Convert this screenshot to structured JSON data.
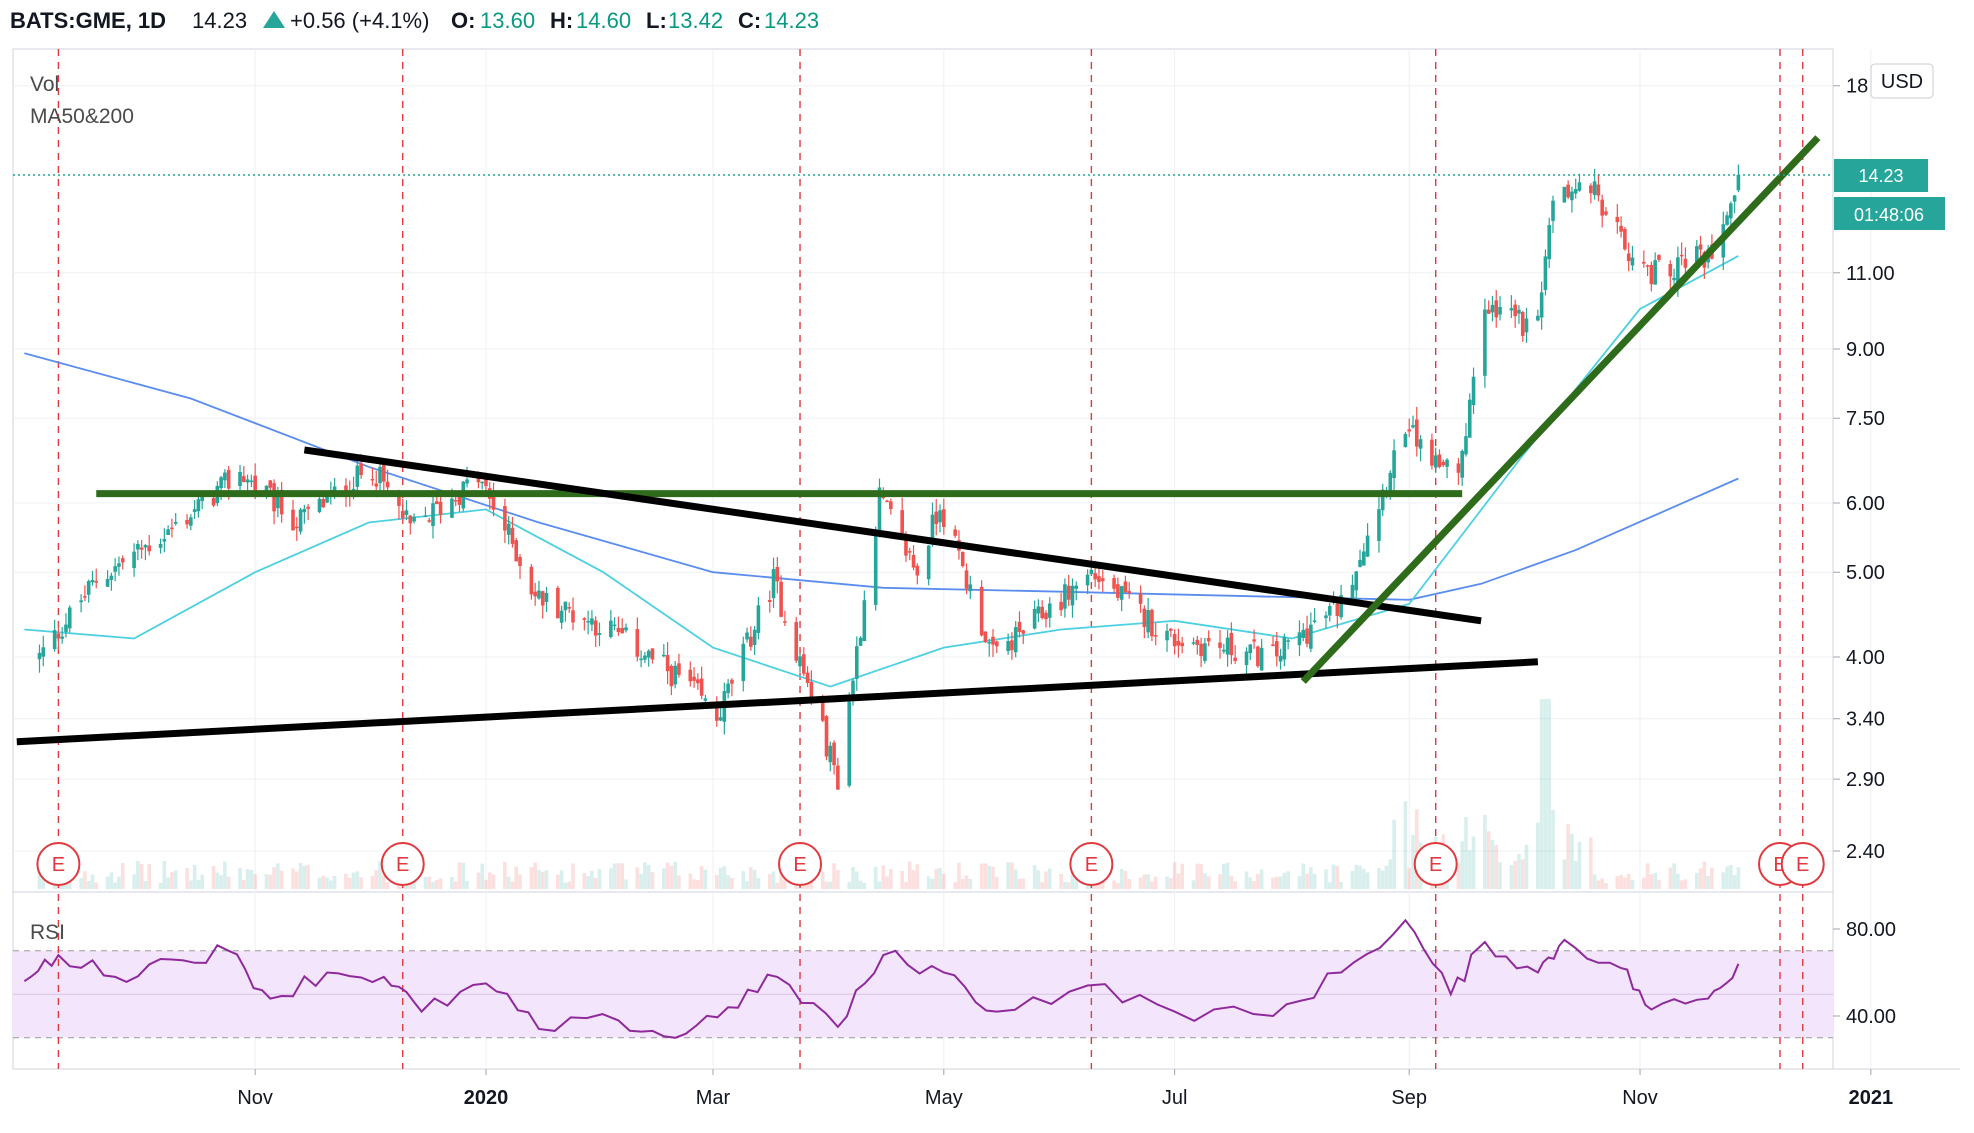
{
  "header": {
    "symbol": "BATS:GME, 1D",
    "last": "14.23",
    "change": "+0.56 (+4.1%)",
    "o_label": "O:",
    "o_value": "13.60",
    "h_label": "H:",
    "h_value": "14.60",
    "l_label": "L:",
    "l_value": "13.42",
    "c_label": "C:",
    "c_value": "14.23"
  },
  "indicators": {
    "vol": "Vol",
    "ma": "MA50&200",
    "rsi": "RSI"
  },
  "price_axis": {
    "currency": "USD",
    "ticks": [
      "18",
      "11.00",
      "9.00",
      "7.50",
      "6.00",
      "5.00",
      "4.00",
      "3.40",
      "2.90",
      "2.40"
    ],
    "last_price": "14.23",
    "countdown": "01:48:06"
  },
  "rsi_axis": {
    "ticks": [
      "80.00",
      "40.00"
    ]
  },
  "time_axis": {
    "labels": [
      "Nov",
      "2020",
      "Mar",
      "May",
      "Jul",
      "Sep",
      "Nov",
      "2021"
    ]
  },
  "earnings_marker": "E",
  "colors": {
    "up": "#26a69a",
    "down": "#ef5350",
    "ma50": "#4dd0e1",
    "ma200": "#5b8def",
    "support": "#2e6b1b",
    "trendline": "#000000",
    "rsi": "#8e2a9c",
    "rsi_band": "#f3e5fb",
    "earnings": "#e03a3e"
  },
  "chart_data": {
    "type": "candlestick",
    "title": "BATS:GME, 1D",
    "scale": "log",
    "ylim": [
      2.4,
      18
    ],
    "rsi_band": [
      30,
      70
    ],
    "date_range": [
      "2019-09",
      "2020-12"
    ],
    "anchors": [
      {
        "date": "2019-09-05",
        "close": 4.0
      },
      {
        "date": "2019-09-20",
        "close": 4.9
      },
      {
        "date": "2019-10-10",
        "close": 5.6
      },
      {
        "date": "2019-10-28",
        "close": 6.5
      },
      {
        "date": "2019-11-12",
        "close": 5.7
      },
      {
        "date": "2019-12-02",
        "close": 6.6
      },
      {
        "date": "2019-12-12",
        "close": 5.6
      },
      {
        "date": "2019-12-30",
        "close": 6.4
      },
      {
        "date": "2020-01-08",
        "close": 5.4
      },
      {
        "date": "2020-01-14",
        "close": 4.7
      },
      {
        "date": "2020-02-03",
        "close": 4.3
      },
      {
        "date": "2020-02-24",
        "close": 3.7
      },
      {
        "date": "2020-03-02",
        "close": 3.4
      },
      {
        "date": "2020-03-17",
        "close": 4.9
      },
      {
        "date": "2020-04-03",
        "close": 2.9
      },
      {
        "date": "2020-04-14",
        "close": 6.1
      },
      {
        "date": "2020-04-24",
        "close": 5.0
      },
      {
        "date": "2020-04-30",
        "close": 6.0
      },
      {
        "date": "2020-05-14",
        "close": 4.0
      },
      {
        "date": "2020-06-09",
        "close": 5.0
      },
      {
        "date": "2020-06-30",
        "close": 4.2
      },
      {
        "date": "2020-07-27",
        "close": 4.0
      },
      {
        "date": "2020-08-14",
        "close": 4.6
      },
      {
        "date": "2020-08-31",
        "close": 7.3
      },
      {
        "date": "2020-09-14",
        "close": 6.3
      },
      {
        "date": "2020-09-21",
        "close": 10.0
      },
      {
        "date": "2020-10-05",
        "close": 9.5
      },
      {
        "date": "2020-10-09",
        "close": 13.5
      },
      {
        "date": "2020-10-19",
        "close": 13.8
      },
      {
        "date": "2020-10-27",
        "close": 12.0
      },
      {
        "date": "2020-11-03",
        "close": 11.0
      },
      {
        "date": "2020-11-19",
        "close": 11.5
      },
      {
        "date": "2020-11-27",
        "close": 14.23
      }
    ],
    "ma50": [
      {
        "date": "2019-09-01",
        "value": 4.3
      },
      {
        "date": "2019-09-30",
        "value": 4.2
      },
      {
        "date": "2019-11-01",
        "value": 5.0
      },
      {
        "date": "2019-12-01",
        "value": 5.7
      },
      {
        "date": "2020-01-01",
        "value": 5.9
      },
      {
        "date": "2020-02-01",
        "value": 5.0
      },
      {
        "date": "2020-03-01",
        "value": 4.1
      },
      {
        "date": "2020-04-01",
        "value": 3.7
      },
      {
        "date": "2020-05-01",
        "value": 4.1
      },
      {
        "date": "2020-06-01",
        "value": 4.3
      },
      {
        "date": "2020-07-01",
        "value": 4.4
      },
      {
        "date": "2020-08-01",
        "value": 4.2
      },
      {
        "date": "2020-09-01",
        "value": 4.6
      },
      {
        "date": "2020-10-01",
        "value": 6.8
      },
      {
        "date": "2020-11-01",
        "value": 10.0
      },
      {
        "date": "2020-11-27",
        "value": 11.5
      }
    ],
    "ma200": [
      {
        "date": "2019-09-01",
        "value": 8.9
      },
      {
        "date": "2019-10-15",
        "value": 7.9
      },
      {
        "date": "2019-12-01",
        "value": 6.6
      },
      {
        "date": "2020-01-15",
        "value": 5.7
      },
      {
        "date": "2020-03-01",
        "value": 5.0
      },
      {
        "date": "2020-04-15",
        "value": 4.8
      },
      {
        "date": "2020-06-01",
        "value": 4.75
      },
      {
        "date": "2020-07-15",
        "value": 4.7
      },
      {
        "date": "2020-09-01",
        "value": 4.65
      },
      {
        "date": "2020-09-20",
        "value": 4.85
      },
      {
        "date": "2020-10-15",
        "value": 5.3
      },
      {
        "date": "2020-11-27",
        "value": 6.4
      }
    ],
    "rsi": [
      {
        "date": "2019-09-01",
        "value": 56
      },
      {
        "date": "2019-09-10",
        "value": 68
      },
      {
        "date": "2019-09-25",
        "value": 58
      },
      {
        "date": "2019-10-10",
        "value": 66
      },
      {
        "date": "2019-10-25",
        "value": 70
      },
      {
        "date": "2019-11-05",
        "value": 48
      },
      {
        "date": "2019-11-20",
        "value": 60
      },
      {
        "date": "2019-12-05",
        "value": 58
      },
      {
        "date": "2019-12-15",
        "value": 42
      },
      {
        "date": "2020-01-01",
        "value": 55
      },
      {
        "date": "2020-01-15",
        "value": 34
      },
      {
        "date": "2020-02-05",
        "value": 38
      },
      {
        "date": "2020-02-20",
        "value": 30
      },
      {
        "date": "2020-03-05",
        "value": 44
      },
      {
        "date": "2020-03-18",
        "value": 58
      },
      {
        "date": "2020-04-03",
        "value": 35
      },
      {
        "date": "2020-04-15",
        "value": 68
      },
      {
        "date": "2020-05-01",
        "value": 60
      },
      {
        "date": "2020-05-15",
        "value": 42
      },
      {
        "date": "2020-06-08",
        "value": 54
      },
      {
        "date": "2020-07-01",
        "value": 42
      },
      {
        "date": "2020-07-27",
        "value": 40
      },
      {
        "date": "2020-08-14",
        "value": 60
      },
      {
        "date": "2020-08-31",
        "value": 84
      },
      {
        "date": "2020-09-12",
        "value": 50
      },
      {
        "date": "2020-09-21",
        "value": 74
      },
      {
        "date": "2020-10-05",
        "value": 60
      },
      {
        "date": "2020-10-12",
        "value": 75
      },
      {
        "date": "2020-10-27",
        "value": 62
      },
      {
        "date": "2020-11-04",
        "value": 43
      },
      {
        "date": "2020-11-19",
        "value": 48
      },
      {
        "date": "2020-11-27",
        "value": 64
      }
    ],
    "earnings_dates": [
      "2019-09-10",
      "2019-12-10",
      "2020-03-24",
      "2020-06-09",
      "2020-09-08",
      "2020-12-08",
      "2020-12-14"
    ],
    "drawings": [
      {
        "name": "horizontal-resistance",
        "from": {
          "date": "2019-09-20",
          "value": 6.15
        },
        "to": {
          "date": "2020-09-15",
          "value": 6.15
        }
      },
      {
        "name": "descending-trendline",
        "from": {
          "date": "2019-11-14",
          "value": 6.9
        },
        "to": {
          "date": "2020-09-20",
          "value": 4.4
        }
      },
      {
        "name": "ascending-support",
        "from": {
          "date": "2019-08-30",
          "value": 3.2
        },
        "to": {
          "date": "2020-10-05",
          "value": 3.95
        }
      },
      {
        "name": "uptrend-line",
        "from": {
          "date": "2020-08-04",
          "value": 3.75
        },
        "to": {
          "date": "2020-12-18",
          "value": 15.7
        }
      }
    ]
  }
}
